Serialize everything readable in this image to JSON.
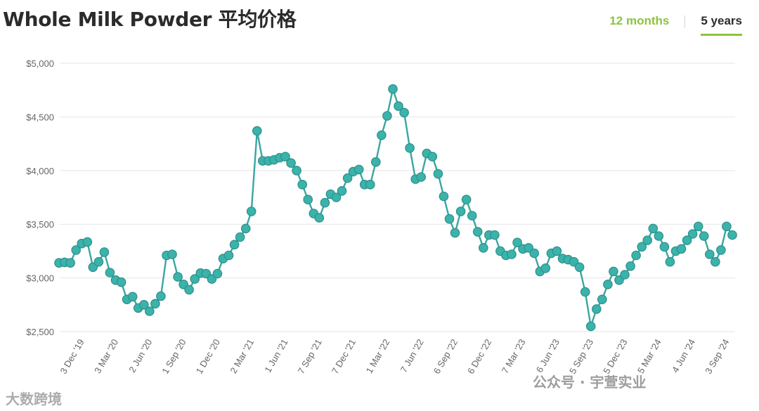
{
  "title": "Whole Milk Powder 平均价格",
  "range_tabs": {
    "months": "12 months",
    "years": "5 years",
    "active": "5 years"
  },
  "colors": {
    "line": "#3aa6a0",
    "marker_fill": "#3ab3ab",
    "marker_stroke": "#2f8f8a",
    "accent": "#8cc43d",
    "grid": "#e6e6e6"
  },
  "watermarks": {
    "left": "大数跨境",
    "right": "公众号 · 宇萱实业"
  },
  "chart_data": {
    "type": "line",
    "title": "Whole Milk Powder 平均价格",
    "ylim": [
      2500,
      5000
    ],
    "y_ticks": [
      2500,
      3000,
      3500,
      4000,
      4500,
      5000
    ],
    "y_tick_labels": [
      "$2,500",
      "$3,000",
      "$3,500",
      "$4,000",
      "$4,500",
      "$5,000"
    ],
    "x_ticks": [
      {
        "label": "3 Dec '19",
        "index": 3
      },
      {
        "label": "3 Mar '20",
        "index": 9
      },
      {
        "label": "2 Jun '20",
        "index": 15
      },
      {
        "label": "1 Sep '20",
        "index": 21
      },
      {
        "label": "1 Dec '20",
        "index": 27
      },
      {
        "label": "2 Mar '21",
        "index": 33
      },
      {
        "label": "1 Jun '21",
        "index": 39
      },
      {
        "label": "7 Sep '21",
        "index": 45
      },
      {
        "label": "7 Dec '21",
        "index": 51
      },
      {
        "label": "1 Mar '22",
        "index": 57
      },
      {
        "label": "7 Jun '22",
        "index": 63
      },
      {
        "label": "6 Sep '22",
        "index": 69
      },
      {
        "label": "6 Dec '22",
        "index": 75
      },
      {
        "label": "7 Mar '23",
        "index": 81
      },
      {
        "label": "6 Jun '23",
        "index": 87
      },
      {
        "label": "5 Sep '23",
        "index": 93
      },
      {
        "label": "5 Dec '23",
        "index": 99
      },
      {
        "label": "5 Mar '24",
        "index": 105
      },
      {
        "label": "4 Jun '24",
        "index": 111
      },
      {
        "label": "3 Sep '24",
        "index": 117
      }
    ],
    "grid": true,
    "series": [
      {
        "values": [
          3140,
          3145,
          3140,
          3260,
          3320,
          3335,
          3100,
          3150,
          3240,
          3050,
          2980,
          2960,
          2800,
          2825,
          2720,
          2750,
          2690,
          2760,
          2830,
          3210,
          3220,
          3010,
          2940,
          2890,
          2990,
          3045,
          3040,
          2990,
          3040,
          3180,
          3210,
          3310,
          3380,
          3460,
          3620,
          4370,
          4090,
          4090,
          4100,
          4120,
          4130,
          4070,
          4000,
          3870,
          3730,
          3600,
          3560,
          3700,
          3780,
          3750,
          3810,
          3930,
          3990,
          4010,
          3870,
          3870,
          4080,
          4330,
          4510,
          4760,
          4600,
          4540,
          4210,
          3920,
          3940,
          4160,
          4130,
          3970,
          3760,
          3550,
          3420,
          3620,
          3730,
          3580,
          3430,
          3280,
          3400,
          3400,
          3250,
          3210,
          3220,
          3330,
          3270,
          3280,
          3230,
          3060,
          3090,
          3230,
          3250,
          3180,
          3170,
          3150,
          3100,
          2870,
          2550,
          2710,
          2800,
          2940,
          3060,
          2980,
          3030,
          3110,
          3210,
          3290,
          3350,
          3460,
          3390,
          3290,
          3150,
          3250,
          3270,
          3350,
          3410,
          3480,
          3390,
          3220,
          3150,
          3260,
          3480,
          3400
        ]
      }
    ]
  }
}
